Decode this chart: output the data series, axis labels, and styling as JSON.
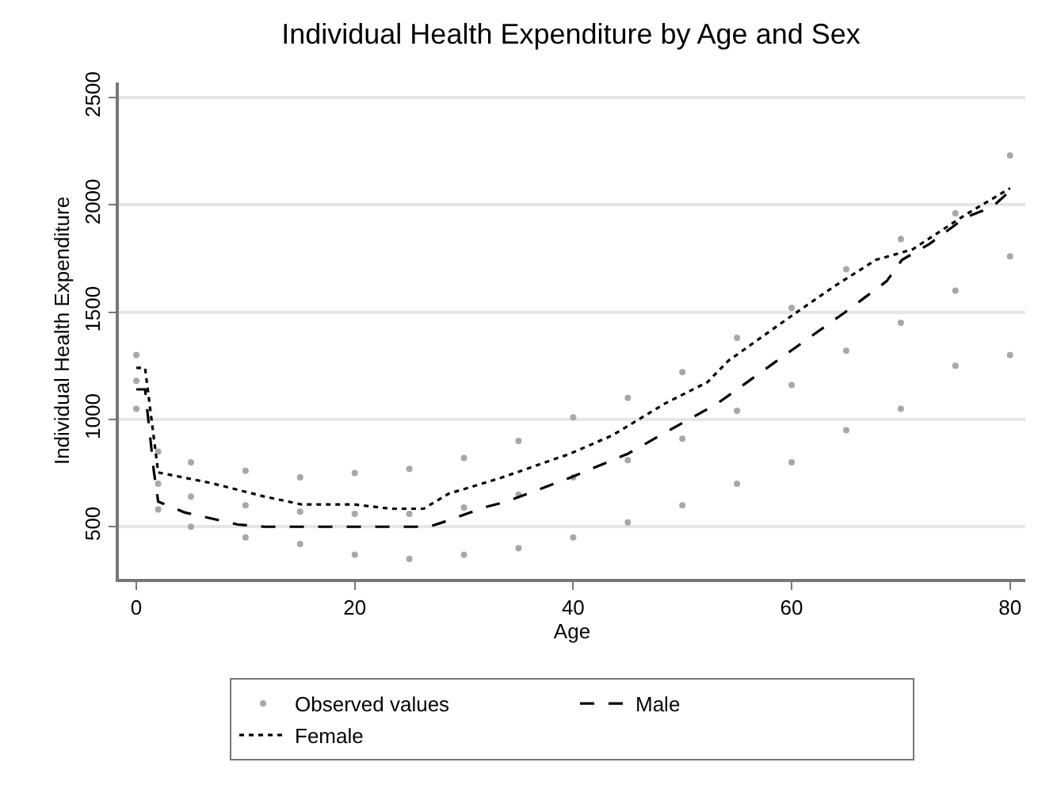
{
  "chart_data": {
    "type": "line",
    "title": "Individual Health Expenditure by Age and Sex",
    "xlabel": "Age",
    "ylabel": "Individual Health Expenditure",
    "xlim": [
      -1.6,
      81.4
    ],
    "xticks": [
      0,
      20,
      40,
      60,
      80
    ],
    "ylim": [
      257,
      2570
    ],
    "yticks": [
      500,
      1000,
      1500,
      2000,
      2500
    ],
    "grid": "y",
    "legend": "bottom",
    "series": [
      {
        "name": "Observed values",
        "type": "scatter",
        "color": "#a8a8a8",
        "x": [
          0,
          0,
          0,
          2,
          2,
          2,
          5,
          5,
          5,
          10,
          10,
          10,
          15,
          15,
          15,
          20,
          20,
          20,
          25,
          25,
          25,
          30,
          30,
          30,
          35,
          35,
          35,
          40,
          40,
          40,
          45,
          45,
          45,
          50,
          50,
          50,
          55,
          55,
          55,
          60,
          60,
          60,
          65,
          65,
          65,
          70,
          70,
          70,
          75,
          75,
          75,
          80,
          80,
          80
        ],
        "values": [
          1050,
          1180,
          1300,
          580,
          700,
          850,
          500,
          640,
          800,
          450,
          600,
          760,
          420,
          570,
          730,
          370,
          560,
          750,
          350,
          560,
          770,
          370,
          590,
          820,
          400,
          650,
          900,
          450,
          730,
          1010,
          520,
          810,
          1100,
          600,
          910,
          1220,
          700,
          1040,
          1380,
          800,
          1160,
          1520,
          950,
          1320,
          1700,
          1050,
          1450,
          1840,
          1250,
          1600,
          1960,
          1300,
          1760,
          2230
        ]
      },
      {
        "name": "Male",
        "color": "#000000",
        "line_style": "dashed",
        "x": [
          0,
          0.8,
          1.6,
          2.0,
          4.4,
          9.3,
          11.7,
          20,
          26.8,
          28.6,
          31.9,
          33.9,
          39.7,
          45,
          48.4,
          53.2,
          56.6,
          60,
          64.8,
          68.7,
          70.1,
          72.6,
          75.9,
          78.4,
          80
        ],
        "values": [
          1140,
          1140,
          760,
          617,
          567,
          510,
          500,
          500,
          500,
          530,
          591,
          617,
          728,
          840,
          938,
          1074,
          1198,
          1322,
          1496,
          1644,
          1743,
          1817,
          1941,
          1991,
          2065
        ]
      },
      {
        "name": "Female",
        "color": "#000000",
        "line_style": "dotted",
        "x": [
          0,
          0.8,
          2.0,
          6.9,
          11.7,
          15.1,
          19.9,
          23.3,
          26.3,
          28.6,
          33.4,
          39.7,
          43.6,
          48.4,
          52.3,
          54.2,
          60,
          63.9,
          67.7,
          71.1,
          75.9,
          80
        ],
        "values": [
          1240,
          1240,
          753,
          703,
          641,
          604,
          604,
          584,
          584,
          654,
          728,
          840,
          926,
          1074,
          1174,
          1273,
          1483,
          1620,
          1743,
          1793,
          1953,
          2077
        ]
      }
    ]
  }
}
